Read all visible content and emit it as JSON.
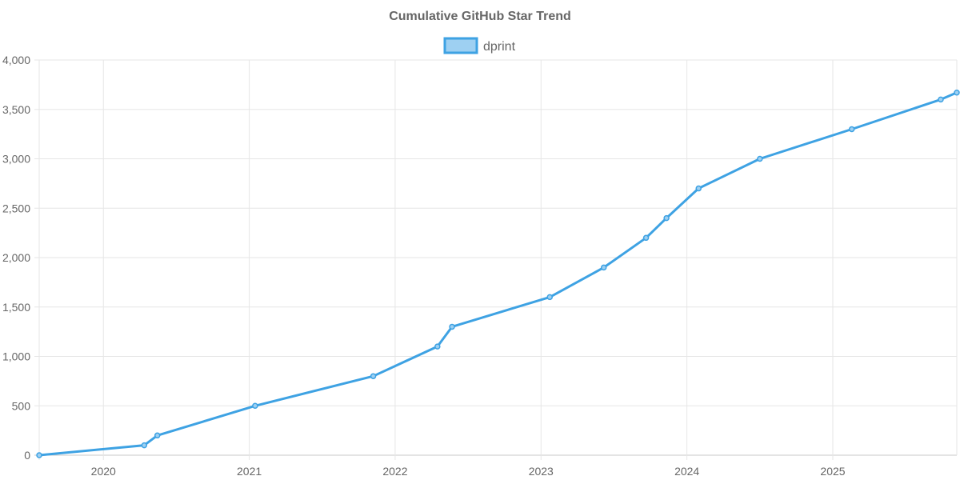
{
  "chart_data": {
    "type": "line",
    "title": "Cumulative GitHub Star Trend",
    "xlabel": "",
    "ylabel": "",
    "legend_position": "top-center",
    "grid": true,
    "colors": {
      "line": "#3ea2e3",
      "fill": "#9ed0f2",
      "text": "#666666",
      "grid": "#e6e6e6"
    },
    "xlim": [
      2019.56,
      2025.85
    ],
    "ylim": [
      0,
      4000
    ],
    "x_ticks": [
      2020,
      2021,
      2022,
      2023,
      2024,
      2025
    ],
    "x_tick_labels": [
      "2020",
      "2021",
      "2022",
      "2023",
      "2024",
      "2025"
    ],
    "y_ticks": [
      0,
      500,
      1000,
      1500,
      2000,
      2500,
      3000,
      3500,
      4000
    ],
    "y_tick_labels": [
      "0",
      "500",
      "1,000",
      "1,500",
      "2,000",
      "2,500",
      "3,000",
      "3,500",
      "4,000"
    ],
    "series": [
      {
        "name": "dprint",
        "x": [
          2019.56,
          2020.28,
          2020.37,
          2021.04,
          2021.85,
          2022.29,
          2022.39,
          2023.06,
          2023.43,
          2023.72,
          2023.86,
          2024.08,
          2024.5,
          2025.13,
          2025.74,
          2025.85
        ],
        "y": [
          0,
          100,
          200,
          500,
          800,
          1100,
          1300,
          1600,
          1900,
          2200,
          2400,
          2700,
          3000,
          3300,
          3600,
          3670
        ]
      }
    ]
  }
}
